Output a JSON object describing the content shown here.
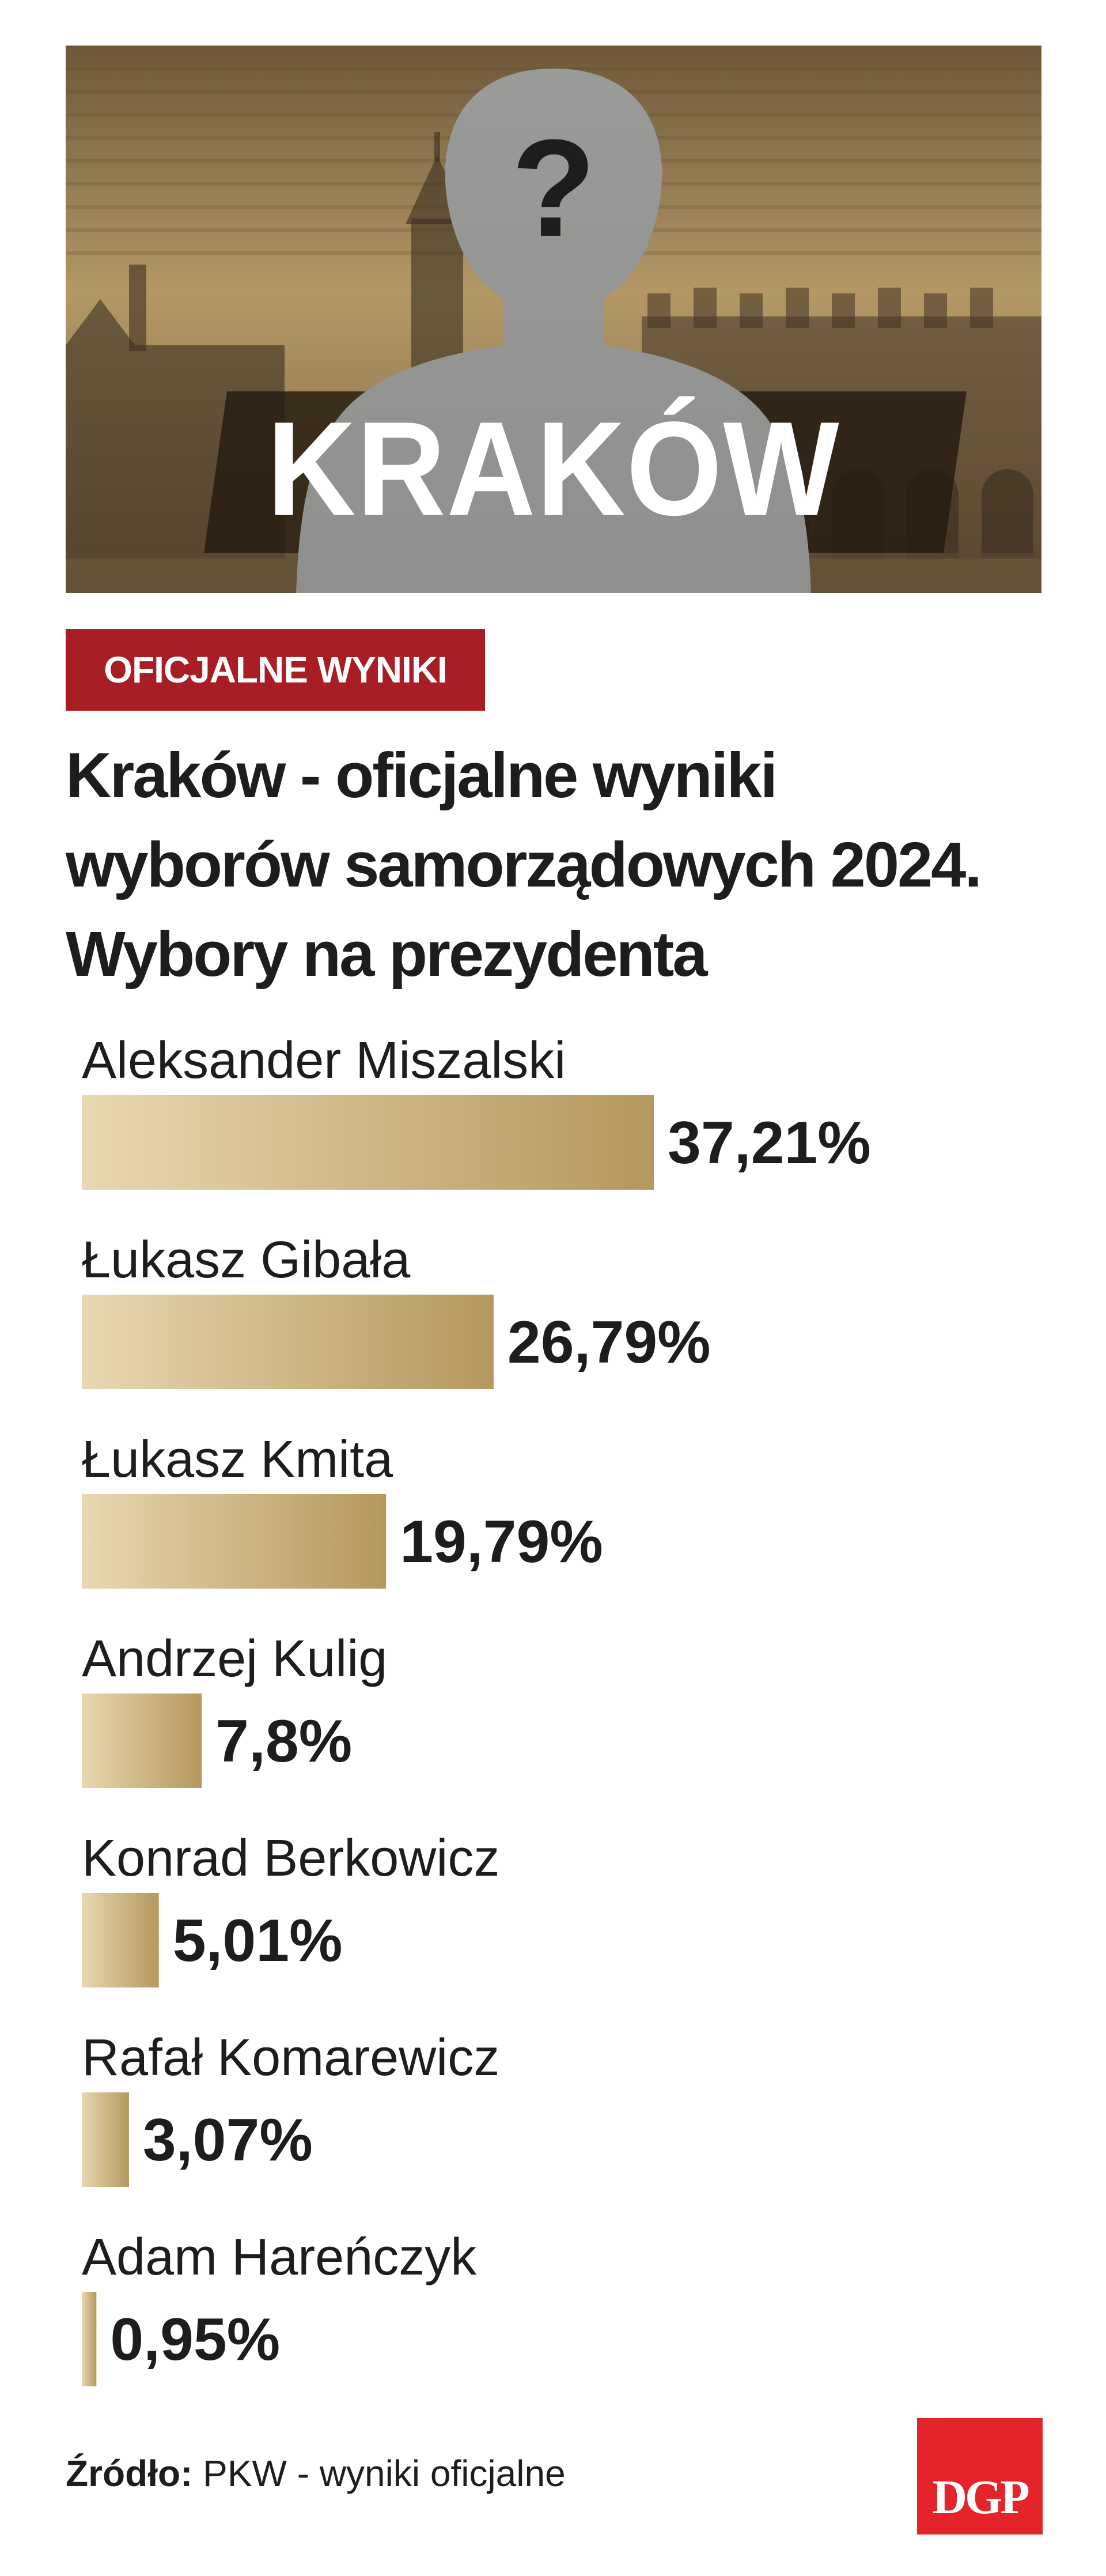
{
  "hero": {
    "title": "KRAKÓW",
    "question_mark": "?"
  },
  "badge": "OFICJALNE WYNIKI",
  "headline": {
    "lines": [
      "Kraków - oficjalne wyniki",
      "wyborów samorządowych 2024.",
      "Wybory na prezydenta"
    ]
  },
  "chart_data": {
    "type": "bar",
    "orientation": "horizontal",
    "categories": [
      "Aleksander Miszalski",
      "Łukasz Gibała",
      "Łukasz Kmita",
      "Andrzej Kulig",
      "Konrad Berkowicz",
      "Rafał Komarewicz",
      "Adam Hareńczyk"
    ],
    "values": [
      37.21,
      26.79,
      19.79,
      7.8,
      5.01,
      3.07,
      0.95
    ],
    "value_labels": [
      "37,21%",
      "26,79%",
      "19,79%",
      "7,8%",
      "5,01%",
      "3,07%",
      "0,95%"
    ],
    "unit": "%",
    "xlim": [
      0,
      37.21
    ],
    "grid": false,
    "legend": "none",
    "colors": {
      "bar_start": "#e8d7b0",
      "bar_end": "#b5985e"
    }
  },
  "source": {
    "label": "Źródło:",
    "text": "PKW - wyniki oficjalne"
  },
  "logo": {
    "text": "DGP",
    "color": "#e4242b"
  },
  "colors": {
    "badge": "#a81e24",
    "text": "#1d1d1b"
  }
}
